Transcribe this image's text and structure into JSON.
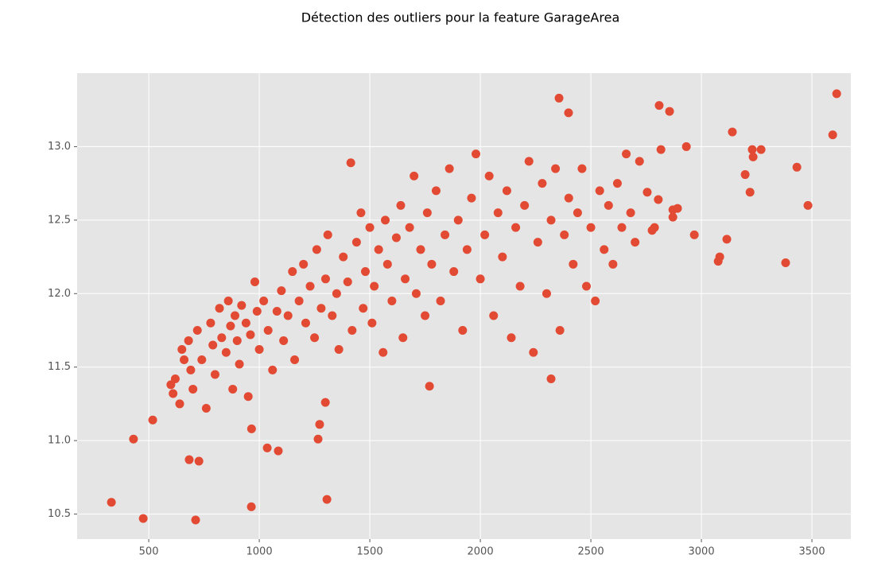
{
  "chart_data": {
    "type": "scatter",
    "title": "Détection des outliers pour la feature GarageArea",
    "color": "#E24A33",
    "background": "#E5E5E5",
    "grid": true,
    "xlim": [
      176,
      3676
    ],
    "ylim": [
      10.33,
      13.5
    ],
    "xticks": [
      500,
      1000,
      1500,
      2000,
      2500,
      3000,
      3500
    ],
    "yticks": [
      10.5,
      {
        "value": 11,
        "label": "11.0"
      },
      11.5,
      {
        "value": 12,
        "label": "12.0"
      },
      12.5,
      {
        "value": 13,
        "label": "13.0"
      }
    ],
    "x": [
      3612,
      3594,
      3482,
      3432,
      3381,
      3270,
      3230,
      3234,
      3220,
      3198,
      3140,
      3115,
      3076,
      3083,
      2968,
      2932,
      2892,
      2871,
      2871,
      2856,
      2809,
      2817,
      2805,
      2788,
      2777,
      2755,
      2399,
      2356,
      1414,
      1306,
      964,
      712,
      475,
      331,
      431,
      518,
      683,
      727,
      2320,
      1770,
      1273,
      1266,
      1299,
      1036,
      1086,
      965,
      600,
      610,
      620,
      640,
      650,
      660,
      680,
      690,
      700,
      720,
      740,
      760,
      780,
      790,
      800,
      820,
      830,
      850,
      860,
      870,
      880,
      890,
      900,
      910,
      920,
      940,
      950,
      960,
      980,
      990,
      1000,
      1020,
      1040,
      1060,
      1080,
      1100,
      1110,
      1130,
      1150,
      1160,
      1180,
      1200,
      1210,
      1230,
      1250,
      1260,
      1280,
      1300,
      1310,
      1330,
      1350,
      1360,
      1380,
      1400,
      1420,
      1440,
      1460,
      1470,
      1480,
      1500,
      1510,
      1520,
      1540,
      1560,
      1570,
      1580,
      1600,
      1620,
      1640,
      1650,
      1660,
      1680,
      1700,
      1710,
      1730,
      1750,
      1760,
      1780,
      1800,
      1820,
      1840,
      1860,
      1880,
      1900,
      1920,
      1940,
      1960,
      1980,
      2000,
      2020,
      2040,
      2060,
      2080,
      2100,
      2120,
      2140,
      2160,
      2180,
      2200,
      2220,
      2240,
      2260,
      2280,
      2300,
      2320,
      2340,
      2360,
      2380,
      2400,
      2420,
      2440,
      2460,
      2480,
      2500,
      2520,
      2540,
      2560,
      2580,
      2600,
      2620,
      2640,
      2660,
      2680,
      2700,
      2720
    ],
    "values": [
      13.36,
      13.08,
      12.6,
      12.86,
      12.21,
      12.98,
      12.98,
      12.93,
      12.69,
      12.81,
      13.1,
      12.37,
      12.22,
      12.25,
      12.4,
      13.0,
      12.58,
      12.57,
      12.52,
      13.24,
      13.28,
      12.98,
      12.64,
      12.45,
      12.43,
      12.69,
      13.23,
      13.33,
      12.89,
      10.6,
      10.55,
      10.46,
      10.47,
      10.58,
      11.01,
      11.14,
      10.87,
      10.86,
      11.42,
      11.37,
      11.11,
      11.01,
      11.26,
      10.95,
      10.93,
      11.08,
      11.38,
      11.32,
      11.42,
      11.25,
      11.62,
      11.55,
      11.68,
      11.48,
      11.35,
      11.75,
      11.55,
      11.22,
      11.8,
      11.65,
      11.45,
      11.9,
      11.7,
      11.6,
      11.95,
      11.78,
      11.35,
      11.85,
      11.68,
      11.52,
      11.92,
      11.8,
      11.3,
      11.72,
      12.08,
      11.88,
      11.62,
      11.95,
      11.75,
      11.48,
      11.88,
      12.02,
      11.68,
      11.85,
      12.15,
      11.55,
      11.95,
      12.2,
      11.8,
      12.05,
      11.7,
      12.3,
      11.9,
      12.1,
      12.4,
      11.85,
      12.0,
      11.62,
      12.25,
      12.08,
      11.75,
      12.35,
      12.55,
      11.9,
      12.15,
      12.45,
      11.8,
      12.05,
      12.3,
      11.6,
      12.5,
      12.2,
      11.95,
      12.38,
      12.6,
      11.7,
      12.1,
      12.45,
      12.8,
      12.0,
      12.3,
      11.85,
      12.55,
      12.2,
      12.7,
      11.95,
      12.4,
      12.85,
      12.15,
      12.5,
      11.75,
      12.3,
      12.65,
      12.95,
      12.1,
      12.4,
      12.8,
      11.85,
      12.55,
      12.25,
      12.7,
      11.7,
      12.45,
      12.05,
      12.6,
      12.9,
      11.6,
      12.35,
      12.75,
      12.0,
      12.5,
      12.85,
      11.75,
      12.4,
      12.65,
      12.2,
      12.55,
      12.85,
      12.05,
      12.45,
      11.95,
      12.7,
      12.3,
      12.6,
      12.2,
      12.75,
      12.45,
      12.95,
      12.55,
      12.35,
      12.9
    ]
  }
}
